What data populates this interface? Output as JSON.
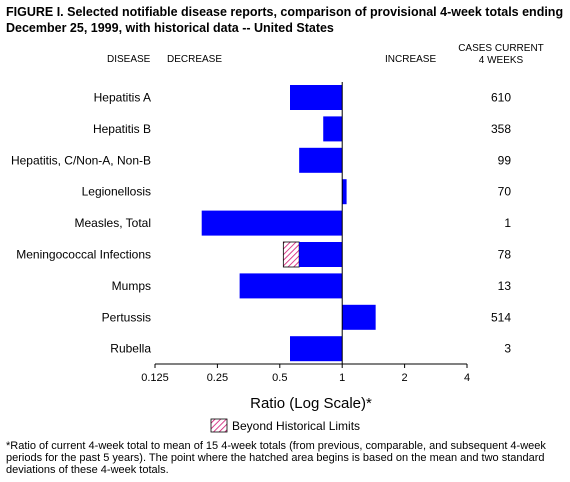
{
  "title": "FIGURE I. Selected notifiable disease reports, comparison of provisional 4-week totals  ending December 25, 1999, with historical data -- United States",
  "headers": {
    "disease": "DISEASE",
    "decrease": "DECREASE",
    "increase": "INCREASE",
    "cases_line1": "CASES CURRENT",
    "cases_line2": "4 WEEKS"
  },
  "legend": {
    "label": "Beyond Historical Limits"
  },
  "footnote": "*Ratio of current 4-week total to mean of 15 4-week totals (from previous, comparable, and subsequent 4-week periods for the past 5 years).  The point where the hatched area begins is based on the mean and two standard deviations of these 4-week totals.",
  "colors": {
    "bar": "#0000ff",
    "hatch": "#d01070"
  },
  "chart_data": {
    "type": "bar",
    "orientation": "horizontal",
    "xscale": "log2",
    "xlim": [
      0.125,
      4
    ],
    "reference": 1,
    "xlabel": "Ratio (Log Scale)*",
    "xticks": [
      "0.125",
      "0.25",
      "0.5",
      "1",
      "2",
      "4"
    ],
    "xtick_values": [
      0.125,
      0.25,
      0.5,
      1,
      2,
      4
    ],
    "categories": [
      "Hepatitis A",
      "Hepatitis B",
      "Hepatitis, C/Non-A, Non-B",
      "Legionellosis",
      "Measles, Total",
      "Meningococcal Infections",
      "Mumps",
      "Pertussis",
      "Rubella"
    ],
    "values": [
      0.56,
      0.81,
      0.62,
      1.05,
      0.21,
      0.52,
      0.32,
      1.45,
      0.56
    ],
    "hatch_start": [
      null,
      null,
      null,
      null,
      null,
      0.62,
      null,
      null,
      null
    ],
    "cases": [
      "610",
      "358",
      "99",
      "70",
      "1",
      "78",
      "13",
      "514",
      "3"
    ]
  }
}
